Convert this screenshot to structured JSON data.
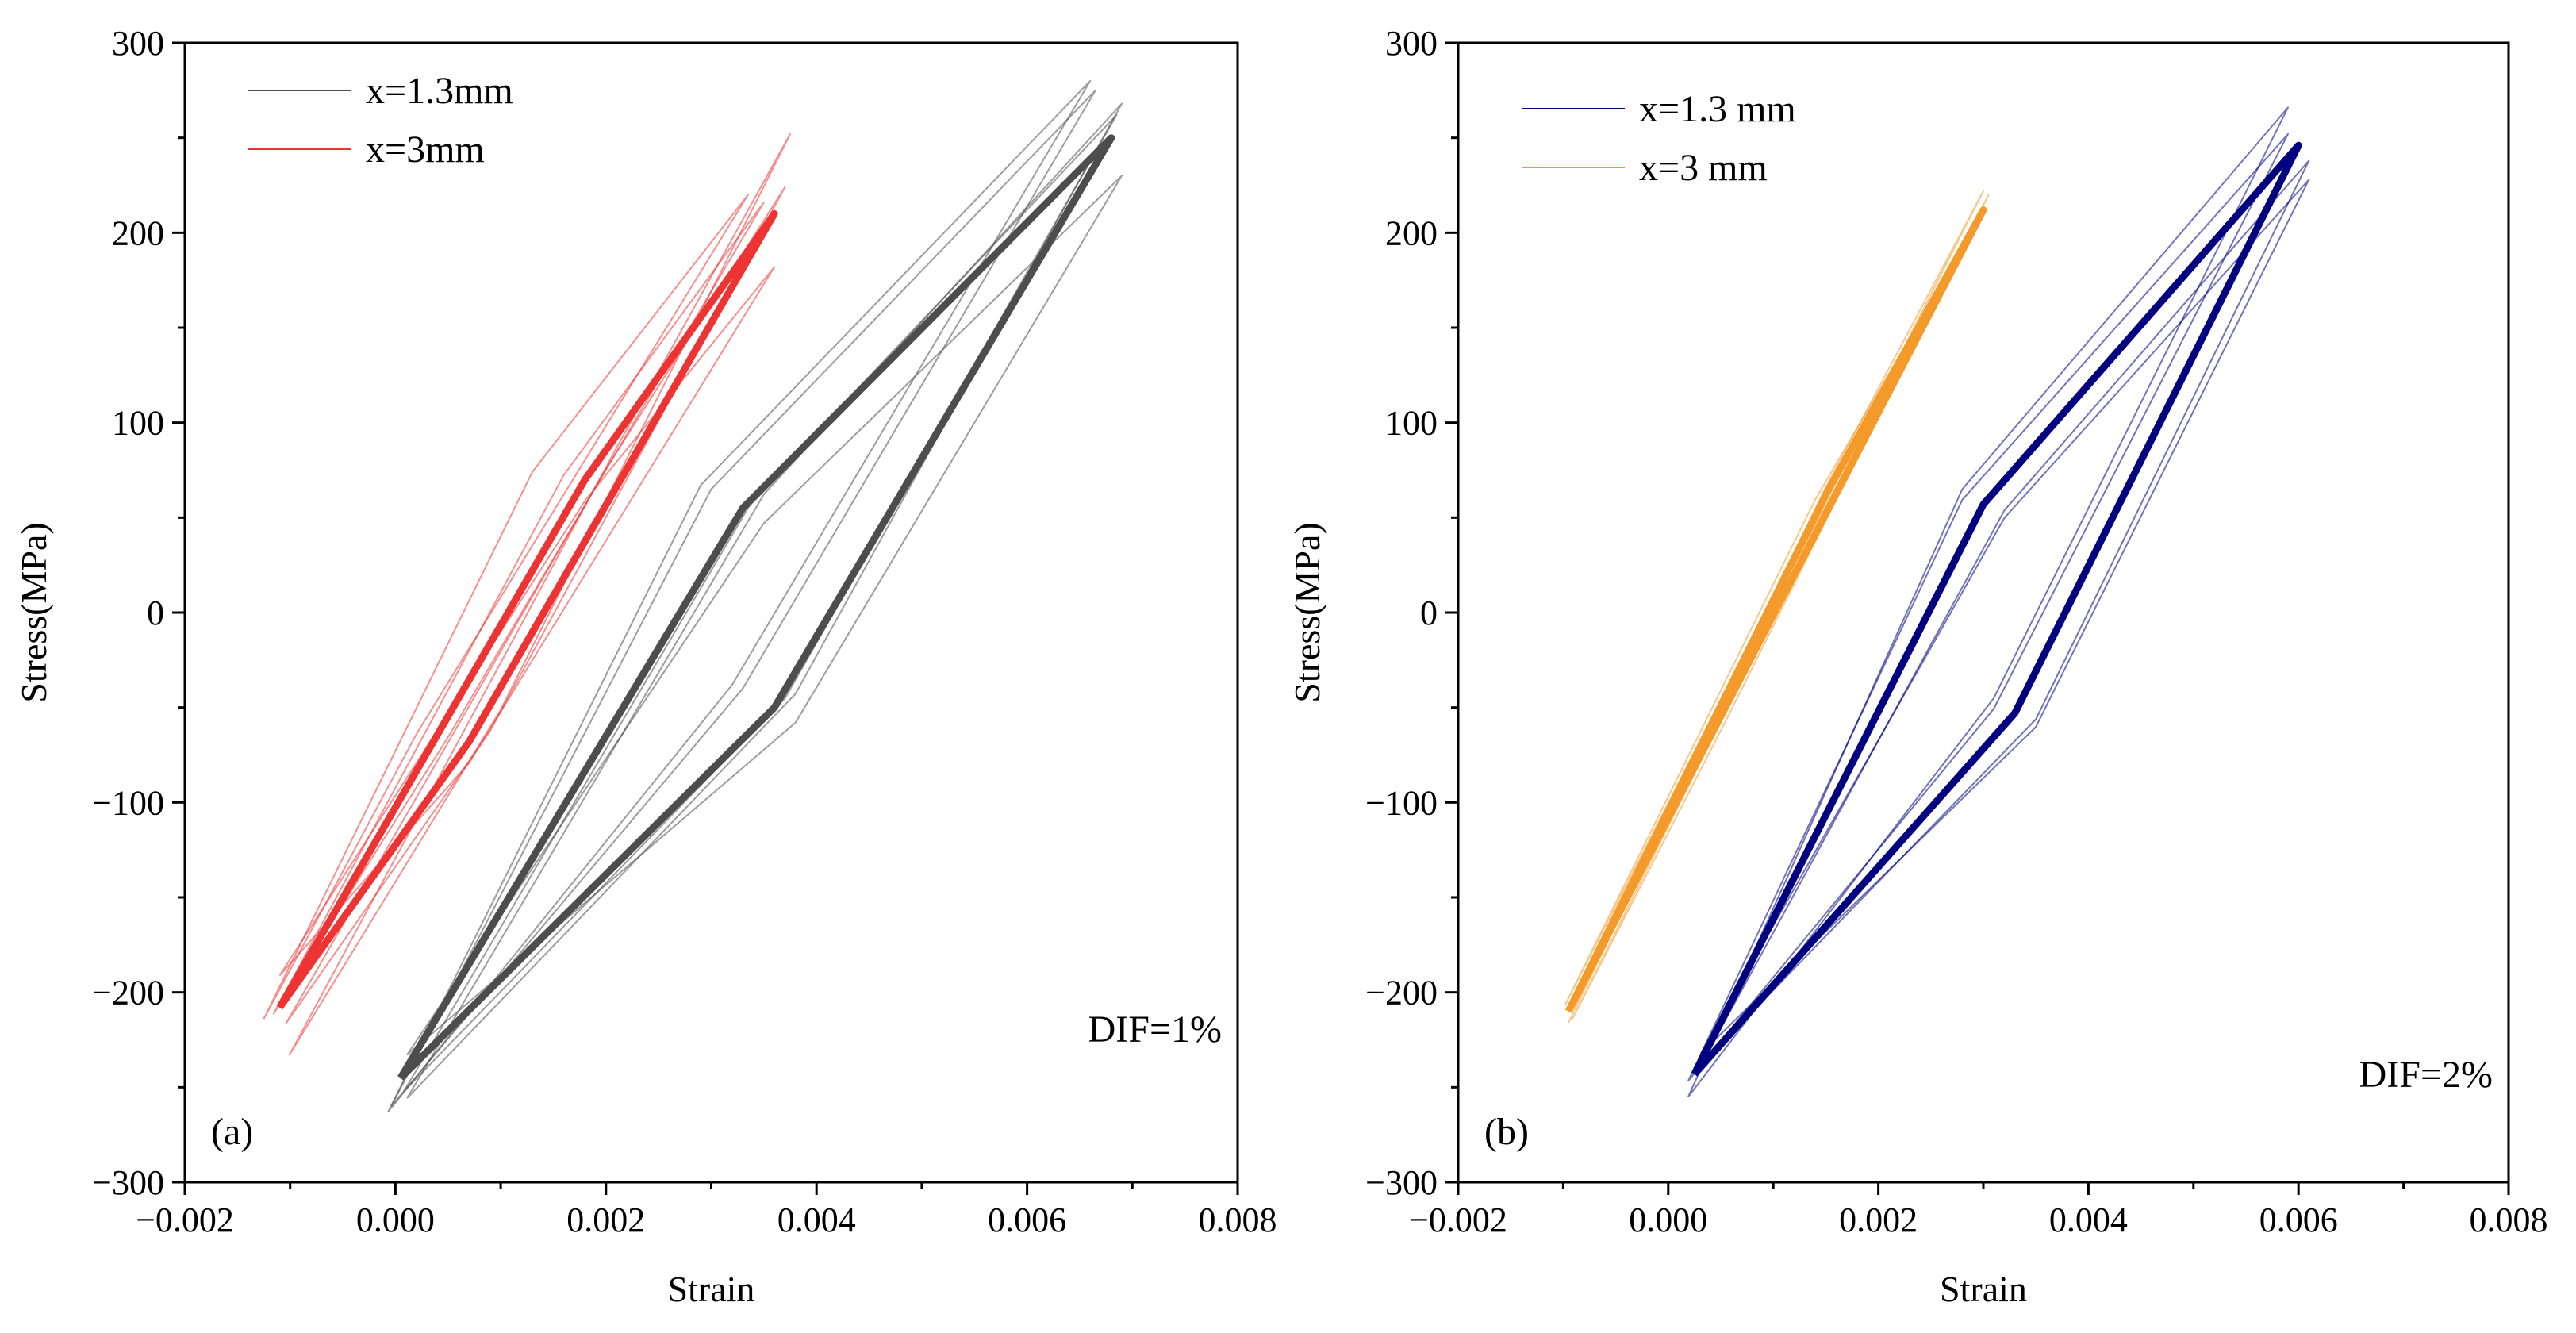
{
  "chart_data": [
    {
      "type": "line",
      "panel_label": "(a)",
      "annotation": "DIF=1%",
      "xlabel": "Strain",
      "ylabel": "Stress(MPa)",
      "xlim": [
        -0.002,
        0.008
      ],
      "ylim": [
        -300,
        300
      ],
      "x_ticks": [
        -0.002,
        0.0,
        0.002,
        0.004,
        0.006,
        0.008
      ],
      "x_tick_labels": [
        "−0.002",
        "0.000",
        "0.002",
        "0.004",
        "0.006",
        "0.008"
      ],
      "y_ticks": [
        -300,
        -200,
        -100,
        0,
        100,
        200,
        300
      ],
      "y_tick_labels": [
        "−300",
        "−200",
        "−100",
        "0",
        "100",
        "200",
        "300"
      ],
      "grid": false,
      "legend_position": "top-left",
      "series": [
        {
          "name": "x=1.3mm",
          "color": "#4d4d4d",
          "x": [
            5e-05,
            0.0033,
            0.0068,
            0.0036,
            5e-05
          ],
          "y": [
            -245,
            55,
            250,
            -50,
            -245
          ]
        },
        {
          "name": "x=3mm",
          "color": "#ee3333",
          "x": [
            -0.0011,
            0.0018,
            0.0036,
            0.0007,
            -0.0011
          ],
          "y": [
            -208,
            70,
            210,
            -68,
            -208
          ]
        }
      ]
    },
    {
      "type": "line",
      "panel_label": "(b)",
      "annotation": "DIF=2%",
      "xlabel": "Strain",
      "ylabel": "Stress(MPa)",
      "xlim": [
        -0.002,
        0.008
      ],
      "ylim": [
        -300,
        300
      ],
      "x_ticks": [
        -0.002,
        0.0,
        0.002,
        0.004,
        0.006,
        0.008
      ],
      "x_tick_labels": [
        "−0.002",
        "0.000",
        "0.002",
        "0.004",
        "0.006",
        "0.008"
      ],
      "y_ticks": [
        -300,
        -200,
        -100,
        0,
        100,
        200,
        300
      ],
      "y_tick_labels": [
        "−300",
        "−200",
        "−100",
        "0",
        "100",
        "200",
        "300"
      ],
      "grid": false,
      "legend_position": "top-left",
      "series": [
        {
          "name": "x=1.3 mm",
          "color": "#000080",
          "x": [
            0.00025,
            0.003,
            0.006,
            0.0033,
            0.00025
          ],
          "y": [
            -243,
            57,
            246,
            -53,
            -243
          ]
        },
        {
          "name": "x=3 mm",
          "color": "#f39a2b",
          "x": [
            -0.00095,
            0.0015,
            0.003,
            0.00045,
            -0.00095
          ],
          "y": [
            -210,
            62,
            212,
            -60,
            -210
          ]
        }
      ]
    }
  ]
}
